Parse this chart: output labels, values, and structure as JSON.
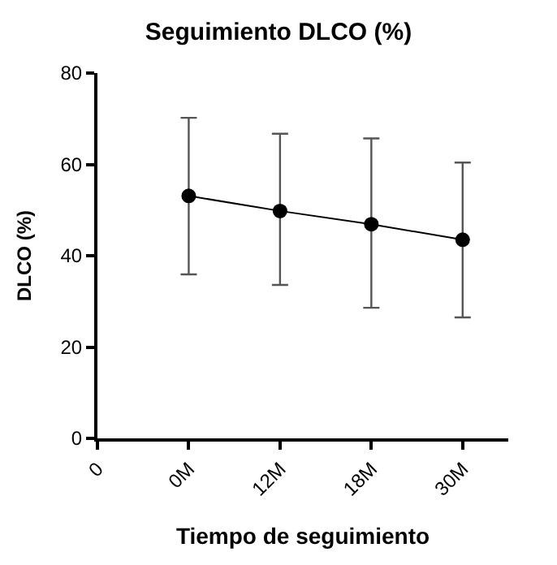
{
  "chart_data": {
    "type": "line",
    "title": "Seguimiento DLCO (%)",
    "xlabel": "Tiempo de seguimiento",
    "ylabel": "DLCO (%)",
    "categories": [
      "0",
      "0M",
      "12M",
      "18M",
      "30M"
    ],
    "series": [
      {
        "color": "#000000",
        "values": [
          null,
          53.1,
          49.8,
          46.9,
          43.5
        ],
        "errors": [
          null,
          [
            35.9,
            70.2
          ],
          [
            33.6,
            66.7
          ],
          [
            28.6,
            65.7
          ],
          [
            26.5,
            60.4
          ]
        ]
      }
    ],
    "ylim": [
      0,
      80
    ],
    "yticks": [
      0,
      20,
      40,
      60,
      80
    ],
    "marker": "circle",
    "line_style": "solid"
  }
}
